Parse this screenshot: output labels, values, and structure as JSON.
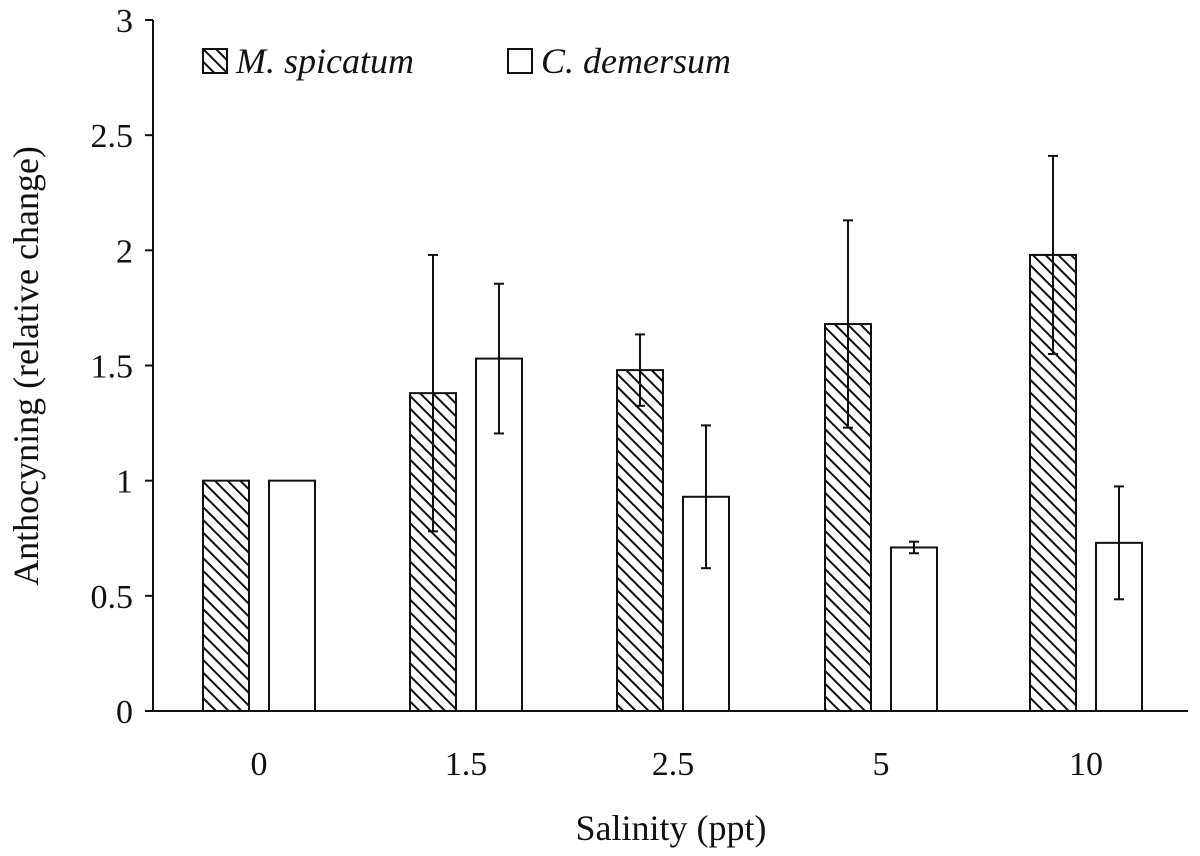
{
  "chart_data": {
    "type": "bar",
    "title": "",
    "xlabel": "Salinity (ppt)",
    "ylabel": "Anthocyning (relative change)",
    "ylim": [
      0,
      3
    ],
    "yticks": [
      0,
      0.5,
      1,
      1.5,
      2,
      2.5,
      3
    ],
    "ytick_labels": [
      "0",
      "0.5",
      "1",
      "1.5",
      "2",
      "2.5",
      "3"
    ],
    "categories": [
      "0",
      "1.5",
      "2.5",
      "5",
      "10"
    ],
    "legend_position": "top-left",
    "grid": false,
    "series": [
      {
        "name": "M. spicatum",
        "pattern": "hatched",
        "values": [
          1.0,
          1.38,
          1.48,
          1.68,
          1.98
        ],
        "errors": [
          0.0,
          0.6,
          0.155,
          0.45,
          0.43
        ]
      },
      {
        "name": "C. demersum",
        "pattern": "open",
        "values": [
          1.0,
          1.53,
          0.93,
          0.71,
          0.73
        ],
        "errors": [
          0.0,
          0.325,
          0.31,
          0.025,
          0.245
        ]
      }
    ]
  }
}
